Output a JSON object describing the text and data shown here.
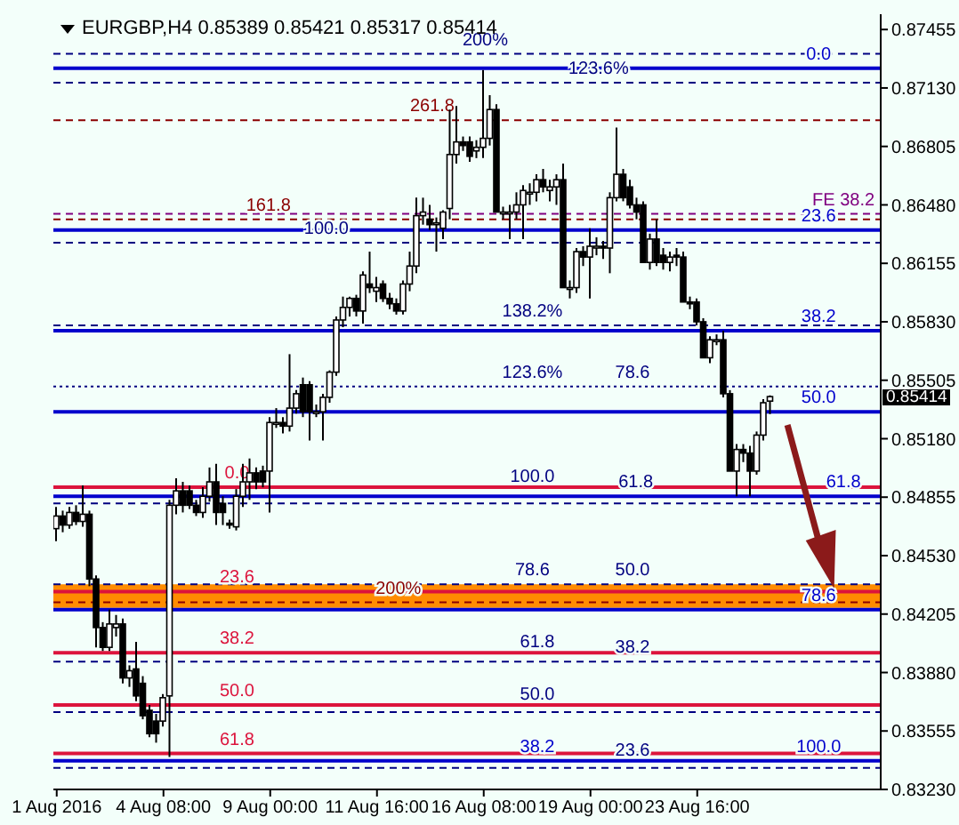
{
  "chart_data": {
    "type": "candlestick",
    "title": "EURGBP,H4  0.85389 0.85421 0.85317 0.85414",
    "categories": [
      "1 Aug 2016",
      null,
      null,
      null,
      null,
      null,
      null,
      null,
      null,
      null,
      null,
      null,
      null,
      null,
      null,
      null,
      "4 Aug 08:00",
      null,
      null,
      null,
      null,
      null,
      null,
      null,
      null,
      null,
      null,
      null,
      null,
      null,
      null,
      null,
      "9 Aug 00:00",
      null,
      null,
      null,
      null,
      null,
      null,
      null,
      null,
      null,
      null,
      null,
      null,
      null,
      null,
      null,
      "11 Aug 16:00",
      null,
      null,
      null,
      null,
      null,
      null,
      null,
      null,
      null,
      null,
      null,
      null,
      null,
      null,
      null,
      "16 Aug 08:00",
      null,
      null,
      null,
      null,
      null,
      null,
      null,
      null,
      null,
      null,
      null,
      null,
      null,
      null,
      null,
      "19 Aug 00:00",
      null,
      null,
      null,
      null,
      null,
      null,
      null,
      null,
      null,
      null,
      null,
      null,
      null,
      null,
      null,
      "23 Aug 16:00",
      null,
      null,
      null,
      null,
      null,
      null,
      null,
      null,
      null,
      null,
      null,
      null,
      null,
      null,
      null,
      null,
      null,
      null,
      null,
      null,
      null,
      null,
      null,
      null,
      null,
      null,
      null
    ],
    "ohlc": [
      [
        0.8468,
        0.848,
        0.8461,
        0.8475
      ],
      [
        0.8475,
        0.8478,
        0.8466,
        0.847
      ],
      [
        0.847,
        0.848,
        0.8468,
        0.8477
      ],
      [
        0.8477,
        0.8481,
        0.847,
        0.8472
      ],
      [
        0.8472,
        0.8492,
        0.8469,
        0.8476
      ],
      [
        0.8476,
        0.8478,
        0.8436,
        0.844
      ],
      [
        0.844,
        0.8442,
        0.8402,
        0.8413
      ],
      [
        0.8413,
        0.8416,
        0.84,
        0.8402
      ],
      [
        0.8402,
        0.8423,
        0.84,
        0.8415
      ],
      [
        0.8413,
        0.842,
        0.8408,
        0.8415
      ],
      [
        0.8415,
        0.8418,
        0.8382,
        0.8385
      ],
      [
        0.8385,
        0.8392,
        0.838,
        0.8389
      ],
      [
        0.839,
        0.8405,
        0.8372,
        0.8375
      ],
      [
        0.8382,
        0.8386,
        0.8362,
        0.8364
      ],
      [
        0.8367,
        0.837,
        0.8352,
        0.8354
      ],
      [
        0.8361,
        0.8365,
        0.8349,
        0.8354
      ],
      [
        0.8361,
        0.8376,
        0.8358,
        0.8374
      ],
      [
        0.8375,
        0.8484,
        0.8341,
        0.8481
      ],
      [
        0.8481,
        0.8496,
        0.8476,
        0.8489
      ],
      [
        0.8489,
        0.8494,
        0.8477,
        0.8481
      ],
      [
        0.8489,
        0.8492,
        0.8479,
        0.8481
      ],
      [
        0.8481,
        0.8484,
        0.8475,
        0.8477
      ],
      [
        0.8477,
        0.8491,
        0.8474,
        0.8486
      ],
      [
        0.8486,
        0.8502,
        0.8483,
        0.8494
      ],
      [
        0.8494,
        0.8504,
        0.847,
        0.8477
      ],
      [
        0.8482,
        0.8486,
        0.847,
        0.8477
      ],
      [
        0.8471,
        0.8473,
        0.8468,
        0.847
      ],
      [
        0.8469,
        0.849,
        0.8467,
        0.8486
      ],
      [
        0.8486,
        0.8504,
        0.848,
        0.8494
      ],
      [
        0.8494,
        0.8507,
        0.8484,
        0.8499
      ],
      [
        0.8499,
        0.8502,
        0.849,
        0.8494
      ],
      [
        0.85,
        0.8503,
        0.8491,
        0.8494
      ],
      [
        0.85,
        0.853,
        0.8477,
        0.8527
      ],
      [
        0.8527,
        0.8535,
        0.8524,
        0.8527
      ],
      [
        0.8527,
        0.853,
        0.8521,
        0.8525
      ],
      [
        0.8525,
        0.8565,
        0.8522,
        0.8535
      ],
      [
        0.8535,
        0.8545,
        0.8532,
        0.8543
      ],
      [
        0.8548,
        0.8552,
        0.853,
        0.8533
      ],
      [
        0.8548,
        0.855,
        0.8517,
        0.8533
      ],
      [
        0.8533,
        0.8537,
        0.853,
        0.8533
      ],
      [
        0.8533,
        0.8543,
        0.8517,
        0.8541
      ],
      [
        0.8541,
        0.8556,
        0.8538,
        0.8555
      ],
      [
        0.8555,
        0.8586,
        0.8553,
        0.8584
      ],
      [
        0.8584,
        0.8597,
        0.858,
        0.8591
      ],
      [
        0.8591,
        0.8597,
        0.8586,
        0.8596
      ],
      [
        0.8596,
        0.8598,
        0.8586,
        0.8589
      ],
      [
        0.8589,
        0.8611,
        0.8582,
        0.8609
      ],
      [
        0.8604,
        0.8622,
        0.8599,
        0.8602
      ],
      [
        0.86,
        0.8608,
        0.8594,
        0.8602
      ],
      [
        0.8604,
        0.8606,
        0.8594,
        0.8596
      ],
      [
        0.8596,
        0.8599,
        0.859,
        0.8593
      ],
      [
        0.8593,
        0.8596,
        0.8587,
        0.8589
      ],
      [
        0.8589,
        0.8606,
        0.8587,
        0.8604
      ],
      [
        0.8604,
        0.8622,
        0.86,
        0.8614
      ],
      [
        0.8614,
        0.8652,
        0.861,
        0.8642
      ],
      [
        0.8642,
        0.8652,
        0.8637,
        0.8644
      ],
      [
        0.864,
        0.8648,
        0.8634,
        0.8637
      ],
      [
        0.8638,
        0.8641,
        0.8622,
        0.8638
      ],
      [
        0.8635,
        0.8645,
        0.8629,
        0.8644
      ],
      [
        0.8646,
        0.8701,
        0.864,
        0.8676
      ],
      [
        0.8676,
        0.8703,
        0.8671,
        0.8683
      ],
      [
        0.8683,
        0.8686,
        0.8678,
        0.8681
      ],
      [
        0.8683,
        0.8686,
        0.8672,
        0.8675
      ],
      [
        0.8678,
        0.8684,
        0.8674,
        0.868
      ],
      [
        0.868,
        0.8723,
        0.8674,
        0.8685
      ],
      [
        0.8685,
        0.8709,
        0.8681,
        0.8701
      ],
      [
        0.8701,
        0.8704,
        0.8644,
        0.8644
      ],
      [
        0.8644,
        0.8647,
        0.864,
        0.8644
      ],
      [
        0.8644,
        0.8648,
        0.8629,
        0.8644
      ],
      [
        0.8644,
        0.8655,
        0.864,
        0.8648
      ],
      [
        0.8648,
        0.8659,
        0.8629,
        0.8656
      ],
      [
        0.8655,
        0.866,
        0.8648,
        0.8655
      ],
      [
        0.8655,
        0.8665,
        0.865,
        0.8662
      ],
      [
        0.8662,
        0.8668,
        0.8655,
        0.8658
      ],
      [
        0.8656,
        0.8662,
        0.865,
        0.8658
      ],
      [
        0.8658,
        0.8665,
        0.8648,
        0.8662
      ],
      [
        0.8662,
        0.8671,
        0.8602,
        0.8602
      ],
      [
        0.8602,
        0.8606,
        0.8596,
        0.8602
      ],
      [
        0.8602,
        0.8624,
        0.8599,
        0.8622
      ],
      [
        0.8622,
        0.8625,
        0.8614,
        0.8619
      ],
      [
        0.8619,
        0.8635,
        0.8596,
        0.8625
      ],
      [
        0.8625,
        0.863,
        0.862,
        0.8625
      ],
      [
        0.8625,
        0.8628,
        0.8618,
        0.8624
      ],
      [
        0.8624,
        0.8655,
        0.861,
        0.8652
      ],
      [
        0.8652,
        0.8691,
        0.865,
        0.8665
      ],
      [
        0.8665,
        0.8668,
        0.865,
        0.8652
      ],
      [
        0.8658,
        0.8662,
        0.8646,
        0.8648
      ],
      [
        0.8648,
        0.8652,
        0.864,
        0.8644
      ],
      [
        0.8648,
        0.865,
        0.8616,
        0.8616
      ],
      [
        0.8616,
        0.8632,
        0.8612,
        0.8629
      ],
      [
        0.8629,
        0.864,
        0.8614,
        0.8616
      ],
      [
        0.862,
        0.8624,
        0.8612,
        0.8616
      ],
      [
        0.8616,
        0.8622,
        0.8611,
        0.8619
      ],
      [
        0.862,
        0.8624,
        0.8614,
        0.8619
      ],
      [
        0.8619,
        0.8622,
        0.8594,
        0.8594
      ],
      [
        0.8594,
        0.8597,
        0.859,
        0.8593
      ],
      [
        0.8594,
        0.8596,
        0.8581,
        0.8583
      ],
      [
        0.8583,
        0.8585,
        0.8563,
        0.8563
      ],
      [
        0.8563,
        0.8575,
        0.856,
        0.8573
      ],
      [
        0.8573,
        0.8576,
        0.857,
        0.8573
      ],
      [
        0.8573,
        0.8578,
        0.8541,
        0.8543
      ],
      [
        0.8543,
        0.8545,
        0.85,
        0.85
      ],
      [
        0.85,
        0.8515,
        0.8486,
        0.8512
      ],
      [
        0.8512,
        0.8515,
        0.8505,
        0.851
      ],
      [
        0.851,
        0.8514,
        0.8486,
        0.85
      ],
      [
        0.85,
        0.8522,
        0.8498,
        0.852
      ],
      [
        0.852,
        0.854,
        0.8517,
        0.8538
      ],
      [
        0.85389,
        0.85421,
        0.85317,
        0.85414
      ],
      null,
      null,
      null,
      null,
      null,
      null,
      null,
      null,
      null,
      null,
      null,
      null,
      null,
      null,
      null,
      null
    ],
    "ylim": [
      0.8323,
      0.8754
    ],
    "yticks": [
      0.87455,
      {
        "value": 0.8713,
        "label": "0.87130"
      },
      0.86805,
      {
        "value": 0.8648,
        "label": "0.86480"
      },
      0.86155,
      {
        "value": 0.8583,
        "label": "0.85830"
      },
      0.85505,
      {
        "value": 0.8518,
        "label": "0.85180"
      },
      0.84855,
      {
        "value": 0.8453,
        "label": "0.84530"
      },
      0.84205,
      {
        "value": 0.8388,
        "label": "0.83880"
      },
      0.83555,
      {
        "value": 0.8323,
        "label": "0.83230"
      }
    ],
    "ref_lines": [
      {
        "axis": "y",
        "value": 0.8732,
        "color": "#000080",
        "line_style": "dashed"
      },
      {
        "axis": "y",
        "value": 0.8724,
        "color": "#0000cc",
        "line_style": "solid"
      },
      {
        "axis": "y",
        "value": 0.8716,
        "color": "#000080",
        "line_style": "dashed"
      },
      {
        "axis": "y",
        "value": 0.8695,
        "color": "#8b0000",
        "line_style": "dashed"
      },
      {
        "axis": "y",
        "value": 0.8643,
        "color": "#800080",
        "line_style": "dashed"
      },
      {
        "axis": "y",
        "value": 0.864,
        "color": "#8b0000",
        "line_style": "dashed"
      },
      {
        "axis": "y",
        "value": 0.8634,
        "color": "#0000cc",
        "line_style": "solid"
      },
      {
        "axis": "y",
        "value": 0.8627,
        "color": "#000080",
        "line_style": "dashed"
      },
      {
        "axis": "y",
        "value": 0.8581,
        "color": "#000080",
        "line_style": "dashed"
      },
      {
        "axis": "y",
        "value": 0.8578,
        "color": "#0000cc",
        "line_style": "solid"
      },
      {
        "axis": "y",
        "value": 0.8547,
        "color": "#000080",
        "line_style": "dotted"
      },
      {
        "axis": "y",
        "value": 0.8533,
        "color": "#0000cc",
        "line_style": "solid"
      },
      {
        "axis": "y",
        "value": 0.8491,
        "color": "#dc143c",
        "line_style": "solid"
      },
      {
        "axis": "y",
        "value": 0.8486,
        "color": "#0000cc",
        "line_style": "solid"
      },
      {
        "axis": "y",
        "value": 0.8482,
        "color": "#000080",
        "line_style": "dashed"
      },
      {
        "axis": "y",
        "value": 0.8437,
        "color": "#000080",
        "line_style": "dashed"
      },
      {
        "axis": "y",
        "value": 0.8433,
        "color": "#dc143c",
        "line_style": "solid"
      },
      {
        "axis": "y",
        "value": 0.8427,
        "color": "#8b0000",
        "line_style": "dashed"
      },
      {
        "axis": "y",
        "value": 0.8423,
        "color": "#0000cc",
        "line_style": "solid"
      },
      {
        "axis": "y",
        "value": 0.8399,
        "color": "#dc143c",
        "line_style": "solid"
      },
      {
        "axis": "y",
        "value": 0.8394,
        "color": "#000080",
        "line_style": "dashed"
      },
      {
        "axis": "y",
        "value": 0.837,
        "color": "#dc143c",
        "line_style": "solid"
      },
      {
        "axis": "y",
        "value": 0.8366,
        "color": "#000080",
        "line_style": "dashed"
      },
      {
        "axis": "y",
        "value": 0.8343,
        "color": "#dc143c",
        "line_style": "solid"
      },
      {
        "axis": "y",
        "value": 0.8339,
        "color": "#0000cc",
        "line_style": "solid"
      },
      {
        "axis": "y",
        "value": 0.8335,
        "color": "#000080",
        "line_style": "dashed"
      }
    ],
    "bands": [
      {
        "axis": "y",
        "from": 0.8424,
        "to": 0.8437,
        "color": "#ff8c00"
      }
    ],
    "annotations": [
      "0.85414",
      {
        "text": "200%",
        "y": 0.8732
      },
      {
        "text": "0.0",
        "y": 0.8724
      },
      {
        "text": "123.6%",
        "y": 0.8716
      },
      {
        "text": "261.8",
        "y": 0.8695
      },
      {
        "text": "FE 38.2",
        "y": 0.8643
      },
      {
        "text": "161.8",
        "y": 0.864
      },
      {
        "text": "23.6",
        "y": 0.8634
      },
      {
        "text": "100.0",
        "y": 0.8627
      },
      {
        "text": "138.2%",
        "y": 0.8581
      },
      {
        "text": "38.2",
        "y": 0.8578
      },
      {
        "text": "123.6%",
        "y": 0.8547
      },
      {
        "text": "78.6",
        "y": 0.8547
      },
      {
        "text": "50.0",
        "y": 0.8533
      },
      {
        "text": "0.0",
        "y": 0.8491
      },
      {
        "text": "100.0",
        "y": 0.8489
      },
      {
        "text": "61.8",
        "y": 0.8486
      },
      {
        "text": "61.8",
        "y": 0.8486
      },
      {
        "text": "78.6",
        "y": 0.8437
      },
      {
        "text": "50.0",
        "y": 0.8437
      },
      {
        "text": "23.6",
        "y": 0.8433
      },
      {
        "text": "200%",
        "y": 0.8427
      },
      {
        "text": "78.6",
        "y": 0.8423
      },
      {
        "text": "38.2",
        "y": 0.8399
      },
      {
        "text": "61.8",
        "y": 0.8397
      },
      {
        "text": "38.2",
        "y": 0.8394
      },
      {
        "text": "50.0",
        "y": 0.837
      },
      {
        "text": "50.0",
        "y": 0.8368
      },
      {
        "text": "61.8",
        "y": 0.8343
      },
      {
        "text": "38.2",
        "y": 0.8339
      },
      {
        "text": "100.0",
        "y": 0.8339
      },
      {
        "text": "23.6",
        "y": 0.8337
      }
    ]
  }
}
